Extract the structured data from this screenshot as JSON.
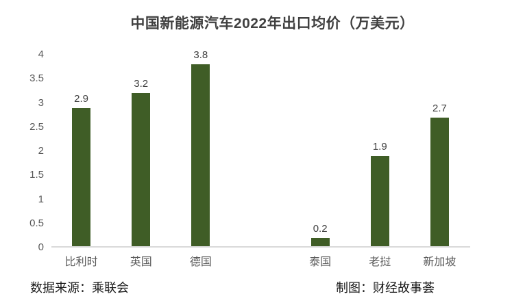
{
  "title": "中国新能源汽车2022年出口均价（万美元）",
  "footer": {
    "source": "数据来源：乘联会",
    "credit": "制图：财经故事荟"
  },
  "colors": {
    "bar": "#3F5D26",
    "title_text": "#404040",
    "axis_label": "#595959",
    "baseline": "#D9D9D9",
    "footer_text": "#1A1A1A",
    "background": "#FFFFFF"
  },
  "chart_data": {
    "type": "bar",
    "title": "中国新能源汽车2022年出口均价（万美元）",
    "categories": [
      "比利时",
      "英国",
      "德国",
      "",
      "泰国",
      "老挝",
      "新加坡"
    ],
    "values": [
      2.9,
      3.2,
      3.8,
      null,
      0.2,
      1.9,
      2.7
    ],
    "data_labels": [
      "2.9",
      "3.2",
      "3.8",
      "",
      "0.2",
      "1.9",
      "2.7"
    ],
    "xlabel": "",
    "ylabel": "",
    "ylim": [
      0,
      4
    ],
    "y_ticks": [
      "4",
      "3.5",
      "3",
      "2.5",
      "2",
      "1.5",
      "1",
      "0.5",
      "0"
    ],
    "grid": false,
    "legend_position": "none",
    "bar_color": "#3F5D26",
    "note": "gap slot between 德国 and 泰国 groups"
  }
}
